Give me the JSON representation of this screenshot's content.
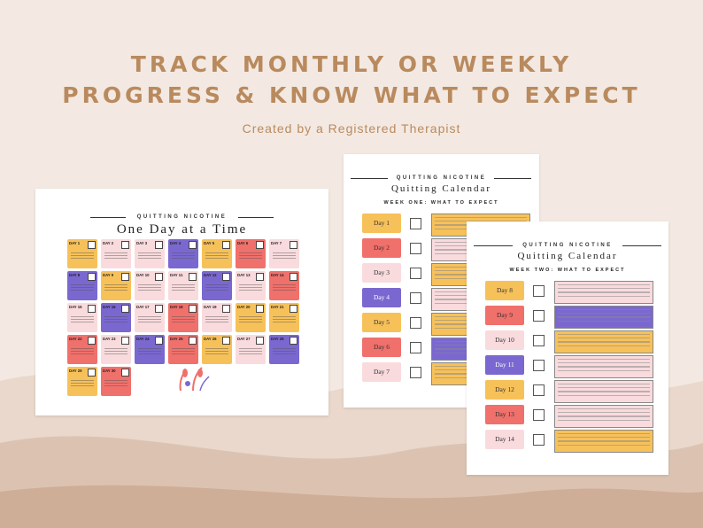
{
  "header": {
    "line1": "TRACK MONTHLY OR WEEKLY",
    "line2": "PROGRESS & KNOW WHAT TO EXPECT",
    "subtitle": "Created by a Registered Therapist"
  },
  "colors": {
    "yellow": "#f7c15a",
    "purple": "#7a68d0",
    "pink": "#f9dbdd",
    "red": "#f0706b",
    "tan": "#b98a5e"
  },
  "monthly": {
    "brand": "QUITTING NICOTINE",
    "title": "One Day at a Time",
    "days": [
      {
        "label": "DAY 1",
        "color": "yellow"
      },
      {
        "label": "DAY 2",
        "color": "pink"
      },
      {
        "label": "DAY 3",
        "color": "pink"
      },
      {
        "label": "DAY 4",
        "color": "purple"
      },
      {
        "label": "DAY 5",
        "color": "yellow"
      },
      {
        "label": "DAY 6",
        "color": "red"
      },
      {
        "label": "DAY 7",
        "color": "pink"
      },
      {
        "label": "DAY 8",
        "color": "purple"
      },
      {
        "label": "DAY 9",
        "color": "yellow"
      },
      {
        "label": "DAY 10",
        "color": "pink"
      },
      {
        "label": "DAY 11",
        "color": "pink"
      },
      {
        "label": "DAY 12",
        "color": "purple"
      },
      {
        "label": "DAY 13",
        "color": "pink"
      },
      {
        "label": "DAY 14",
        "color": "red"
      },
      {
        "label": "DAY 15",
        "color": "pink"
      },
      {
        "label": "DAY 16",
        "color": "purple"
      },
      {
        "label": "DAY 17",
        "color": "pink"
      },
      {
        "label": "DAY 18",
        "color": "red"
      },
      {
        "label": "DAY 19",
        "color": "pink"
      },
      {
        "label": "DAY 20",
        "color": "yellow"
      },
      {
        "label": "DAY 21",
        "color": "yellow"
      },
      {
        "label": "DAY 22",
        "color": "red"
      },
      {
        "label": "DAY 23",
        "color": "pink"
      },
      {
        "label": "DAY 24",
        "color": "purple"
      },
      {
        "label": "DAY 25",
        "color": "red"
      },
      {
        "label": "DAY 26",
        "color": "yellow"
      },
      {
        "label": "DAY 27",
        "color": "pink"
      },
      {
        "label": "DAY 28",
        "color": "purple"
      },
      {
        "label": "DAY 29",
        "color": "yellow"
      },
      {
        "label": "DAY 30",
        "color": "red"
      }
    ]
  },
  "week1": {
    "brand": "QUITTING NICOTINE",
    "title": "Quitting Calendar",
    "heading": "WEEK ONE: WHAT TO EXPECT",
    "days": [
      {
        "label": "Day 1",
        "color": "yellow",
        "note": "yellow"
      },
      {
        "label": "Day 2",
        "color": "red",
        "note": "pink"
      },
      {
        "label": "Day 3",
        "color": "pink",
        "note": "yellow"
      },
      {
        "label": "Day 4",
        "color": "purple",
        "note": "pink"
      },
      {
        "label": "Day 5",
        "color": "yellow",
        "note": "yellow"
      },
      {
        "label": "Day 6",
        "color": "red",
        "note": "purple"
      },
      {
        "label": "Day 7",
        "color": "pink",
        "note": "yellow"
      }
    ]
  },
  "week2": {
    "brand": "QUITTING NICOTINE",
    "title": "Quitting Calendar",
    "heading": "WEEK TWO: WHAT TO EXPECT",
    "days": [
      {
        "label": "Day 8",
        "color": "yellow",
        "note": "pink"
      },
      {
        "label": "Day 9",
        "color": "red",
        "note": "purple"
      },
      {
        "label": "Day 10",
        "color": "pink",
        "note": "yellow"
      },
      {
        "label": "Day 11",
        "color": "purple",
        "note": "pink"
      },
      {
        "label": "Day 12",
        "color": "yellow",
        "note": "pink"
      },
      {
        "label": "Day 13",
        "color": "red",
        "note": "pink"
      },
      {
        "label": "Day 14",
        "color": "pink",
        "note": "yellow"
      }
    ]
  }
}
